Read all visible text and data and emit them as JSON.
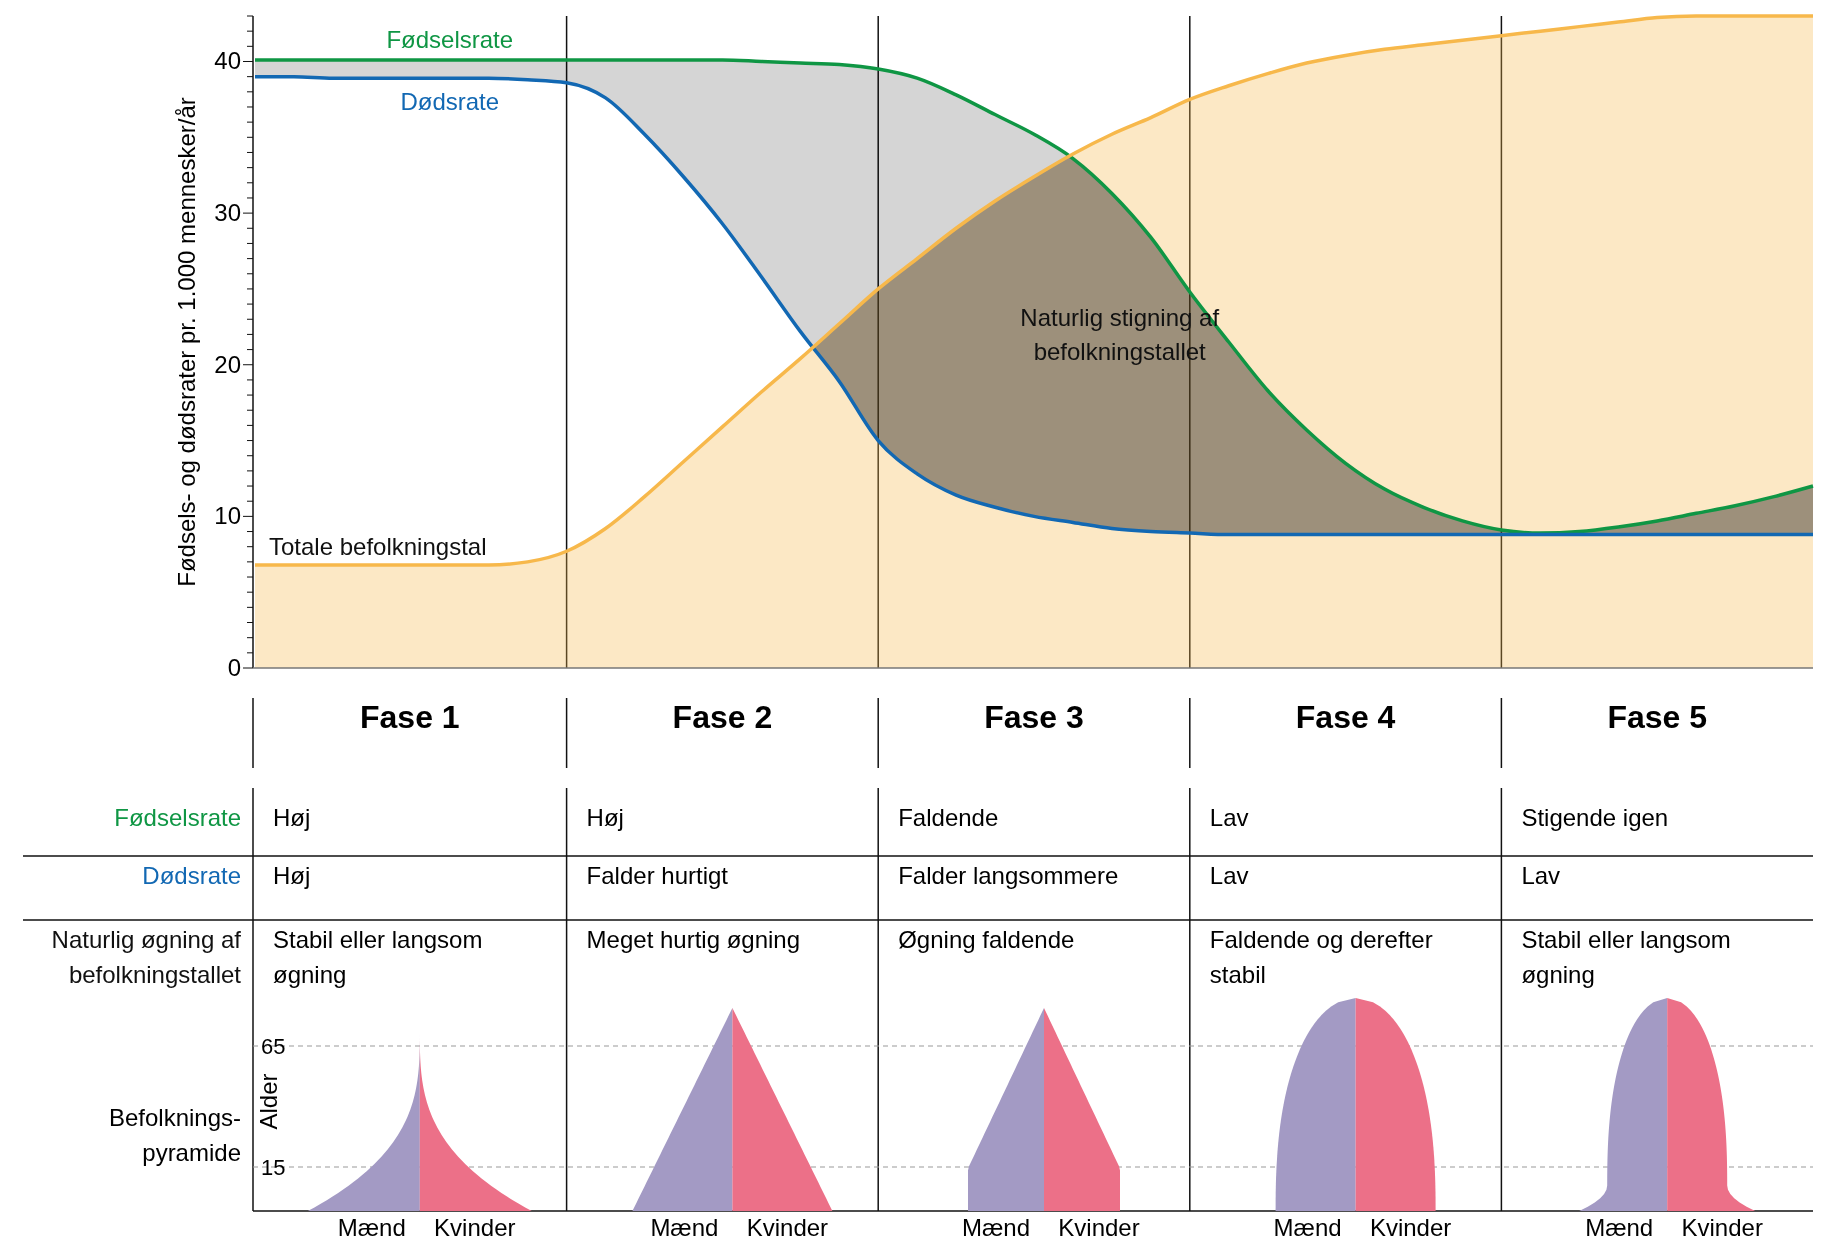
{
  "chart_data": {
    "type": "line",
    "ylabel": "Fødsels- og dødsrater pr. 1.000 mennesker/år",
    "categories": [
      null,
      null,
      null,
      null,
      null,
      null,
      null,
      null,
      null,
      null,
      null,
      null,
      null,
      null,
      null,
      null,
      null,
      null,
      null,
      null,
      null,
      null,
      null,
      null,
      null,
      null,
      null,
      null,
      null,
      null,
      null,
      null,
      null,
      null,
      null,
      null,
      null,
      null,
      null,
      null,
      null
    ],
    "ylim": [
      0,
      43
    ],
    "grid": "x",
    "yticks": [
      0,
      {
        "value": 1,
        "label": null
      },
      {
        "value": 2,
        "label": null
      },
      {
        "value": 3,
        "label": null
      },
      {
        "value": 4,
        "label": null
      },
      {
        "value": 5,
        "label": null
      },
      {
        "value": 6,
        "label": null
      },
      {
        "value": 7,
        "label": null
      },
      {
        "value": 8,
        "label": null
      },
      {
        "value": 9,
        "label": null
      },
      10,
      {
        "value": 11,
        "label": null
      },
      {
        "value": 12,
        "label": null
      },
      {
        "value": 13,
        "label": null
      },
      {
        "value": 14,
        "label": null
      },
      {
        "value": 15,
        "label": null
      },
      {
        "value": 16,
        "label": null
      },
      {
        "value": 17,
        "label": null
      },
      {
        "value": 18,
        "label": null
      },
      {
        "value": 19,
        "label": null
      },
      20,
      {
        "value": 21,
        "label": null
      },
      {
        "value": 22,
        "label": null
      },
      {
        "value": 23,
        "label": null
      },
      {
        "value": 24,
        "label": null
      },
      {
        "value": 25,
        "label": null
      },
      {
        "value": 26,
        "label": null
      },
      {
        "value": 27,
        "label": null
      },
      {
        "value": 28,
        "label": null
      },
      {
        "value": 29,
        "label": null
      },
      30,
      {
        "value": 31,
        "label": null
      },
      {
        "value": 32,
        "label": null
      },
      {
        "value": 33,
        "label": null
      },
      {
        "value": 34,
        "label": null
      },
      {
        "value": 35,
        "label": null
      },
      {
        "value": 36,
        "label": null
      },
      {
        "value": 37,
        "label": null
      },
      {
        "value": 38,
        "label": null
      },
      {
        "value": 39,
        "label": null
      },
      40,
      {
        "value": 41,
        "label": null
      },
      {
        "value": 42,
        "label": null
      },
      {
        "value": 43,
        "label": null
      }
    ],
    "series": [
      {
        "name": "Fødselsrate",
        "color": "#0f9644",
        "values": [
          40.1,
          40.1,
          40.1,
          40.1,
          40.1,
          40.1,
          40.1,
          40.1,
          40.1,
          40.1,
          40.1,
          40.1,
          40.1,
          40.0,
          39.9,
          39.8,
          39.5,
          38.9,
          37.8,
          36.5,
          35.2,
          33.6,
          31.3,
          28.4,
          24.8,
          21.5,
          18.3,
          15.7,
          13.5,
          11.8,
          10.6,
          9.7,
          9.1,
          8.9,
          9.0,
          9.3,
          9.7,
          10.2,
          10.7,
          11.3,
          12.0
        ],
        "lower": [
          39.0,
          39.0,
          38.9,
          38.9,
          38.9,
          38.9,
          38.9,
          38.8,
          38.6,
          37.6,
          35.2,
          32.4,
          29.3,
          25.8,
          22.2,
          18.9,
          15.0,
          12.8,
          11.4,
          10.6,
          10.0,
          9.6,
          9.2,
          9.0,
          8.9,
          8.8,
          8.8,
          8.8,
          8.8,
          8.8,
          8.8,
          8.8,
          8.8,
          8.8,
          8.8,
          8.8,
          8.8,
          8.8,
          8.8,
          8.8,
          8.8
        ],
        "upper": [
          40.1,
          40.1,
          40.1,
          40.1,
          40.1,
          40.1,
          40.1,
          40.1,
          40.1,
          40.1,
          40.1,
          40.1,
          40.1,
          40.0,
          39.9,
          39.8,
          39.5,
          38.9,
          37.8,
          36.5,
          35.2,
          33.6,
          31.3,
          28.4,
          24.8,
          21.5,
          18.3,
          15.7,
          13.5,
          11.8,
          10.6,
          9.7,
          9.1,
          8.9,
          9.0,
          9.3,
          9.7,
          10.2,
          10.7,
          11.3,
          12.0
        ]
      },
      {
        "name": "Dødsrate",
        "color": "#1268b3",
        "values": [
          39.0,
          39.0,
          38.9,
          38.9,
          38.9,
          38.9,
          38.9,
          38.8,
          38.6,
          37.6,
          35.2,
          32.4,
          29.3,
          25.8,
          22.2,
          18.9,
          15.0,
          12.8,
          11.4,
          10.6,
          10.0,
          9.6,
          9.2,
          9.0,
          8.9,
          8.8,
          8.8,
          8.8,
          8.8,
          8.8,
          8.8,
          8.8,
          8.8,
          8.8,
          8.8,
          8.8,
          8.8,
          8.8,
          8.8,
          8.8,
          8.8
        ]
      },
      {
        "name": "Totale befolkningstal",
        "color": "#f7b84b",
        "type": "area",
        "values": [
          6.8,
          6.8,
          6.8,
          6.8,
          6.8,
          6.8,
          6.8,
          7.0,
          7.7,
          9.2,
          11.3,
          13.6,
          15.9,
          18.2,
          20.4,
          22.7,
          25.0,
          27.0,
          29.0,
          30.8,
          32.4,
          33.9,
          35.2,
          36.3,
          37.5,
          38.4,
          39.2,
          39.9,
          40.4,
          40.8,
          41.1,
          41.4,
          41.7,
          42.0,
          42.3,
          42.6,
          42.9,
          43,
          43,
          43,
          43
        ]
      }
    ],
    "annotations": [
      "Naturlig øgning af befolkningstallet",
      "Befolknings- pyramide",
      "Høj",
      "Høj",
      "Faldende",
      "Lav",
      "Stigende igen",
      "Høj",
      "Falder hurtigt",
      "Falder langsommere",
      "Lav",
      "Lav",
      "Stabil eller langsom øgning",
      "Meget hurtig øgning",
      "Øgning faldende",
      "Faldende og derefter stabil",
      "Stabil eller langsom øgning",
      "Mænd",
      "Kvinder",
      "Alder",
      "65",
      "15",
      "Fase 1",
      "Fase 2",
      "Fase 3",
      "Fase 4",
      "Fase 5",
      "Naturlig stigning af befolkningstallet"
    ]
  }
}
